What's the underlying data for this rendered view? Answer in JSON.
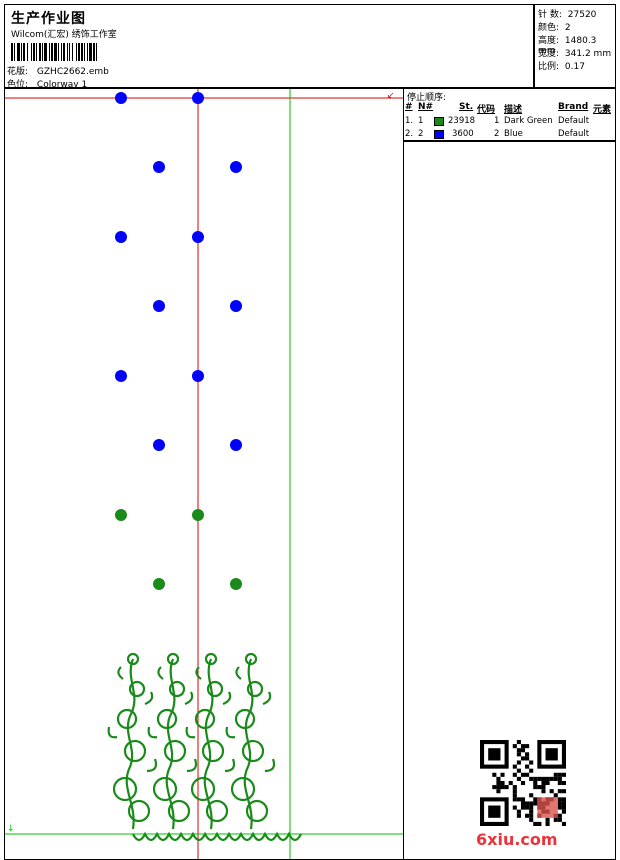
{
  "header": {
    "title": "生产作业图",
    "studio": "Wilcom(汇宏) 绣饰工作室",
    "design_label": "花版:",
    "design_value": "GZHC2662.emb",
    "colorway_label": "色位:",
    "colorway_value": "Colorway 1"
  },
  "stats": {
    "stitches_label": "针 数:",
    "stitches_value": "27520",
    "colors_label": "颜色:",
    "colors_value": "2",
    "height_label": "高度:",
    "height_value": "1480.3 mm",
    "width_label": "宽度:",
    "width_value": "341.2 mm",
    "scale_label": "比例:",
    "scale_value": "0.17"
  },
  "stop_sequence": {
    "title": "停止顺序:",
    "headers": [
      "#",
      "N#",
      "St.",
      "代码",
      "描述",
      "Brand",
      "元素"
    ],
    "rows": [
      {
        "num": "1.",
        "n": "1",
        "color": "#1a8a1a",
        "st": "23918",
        "code": "1",
        "desc": "Dark Green",
        "brand": "Default"
      },
      {
        "num": "2.",
        "n": "2",
        "color": "#0000ff",
        "st": "3600",
        "code": "2",
        "desc": "Blue",
        "brand": "Default"
      }
    ]
  },
  "canvas": {
    "origin_mark_top": "↙",
    "origin_mark_bottom": "↓"
  },
  "watermark": {
    "logo_text": "6xiu.com"
  },
  "colors": {
    "green": "#1a8a1a",
    "blue": "#0000ff",
    "red_line": "#e00000",
    "green_line": "#00c000"
  }
}
